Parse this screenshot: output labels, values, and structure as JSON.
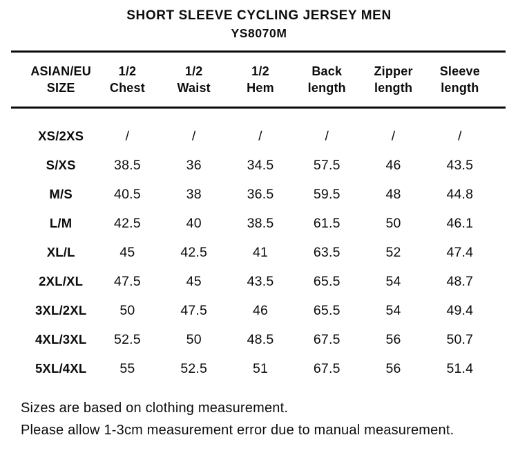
{
  "title": "SHORT SLEEVE CYCLING JERSEY MEN",
  "subtitle": "YS8070M",
  "colors": {
    "text": "#0c0c0c",
    "background": "#ffffff",
    "rule": "#0c0c0c"
  },
  "table": {
    "columns": [
      {
        "line1": "ASIAN/EU",
        "line2": "SIZE"
      },
      {
        "line1": "1/2",
        "line2": "Chest"
      },
      {
        "line1": "1/2",
        "line2": "Waist"
      },
      {
        "line1": "1/2",
        "line2": "Hem"
      },
      {
        "line1": "Back",
        "line2": "length"
      },
      {
        "line1": "Zipper",
        "line2": "length"
      },
      {
        "line1": "Sleeve",
        "line2": "length"
      }
    ],
    "rows": [
      {
        "size": "XS/2XS",
        "values": [
          "/",
          "/",
          "/",
          "/",
          "/",
          "/"
        ]
      },
      {
        "size": "S/XS",
        "values": [
          "38.5",
          "36",
          "34.5",
          "57.5",
          "46",
          "43.5"
        ]
      },
      {
        "size": "M/S",
        "values": [
          "40.5",
          "38",
          "36.5",
          "59.5",
          "48",
          "44.8"
        ]
      },
      {
        "size": "L/M",
        "values": [
          "42.5",
          "40",
          "38.5",
          "61.5",
          "50",
          "46.1"
        ]
      },
      {
        "size": "XL/L",
        "values": [
          "45",
          "42.5",
          "41",
          "63.5",
          "52",
          "47.4"
        ]
      },
      {
        "size": "2XL/XL",
        "values": [
          "47.5",
          "45",
          "43.5",
          "65.5",
          "54",
          "48.7"
        ]
      },
      {
        "size": "3XL/2XL",
        "values": [
          "50",
          "47.5",
          "46",
          "65.5",
          "54",
          "49.4"
        ]
      },
      {
        "size": "4XL/3XL",
        "values": [
          "52.5",
          "50",
          "48.5",
          "67.5",
          "56",
          "50.7"
        ]
      },
      {
        "size": "5XL/4XL",
        "values": [
          "55",
          "52.5",
          "51",
          "67.5",
          "56",
          "51.4"
        ]
      }
    ]
  },
  "notes": [
    "Sizes are based on clothing measurement.",
    "Please allow 1-3cm measurement error due to manual measurement."
  ]
}
